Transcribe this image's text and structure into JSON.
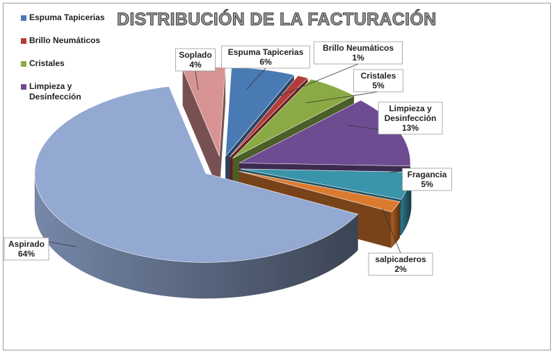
{
  "chart_data": {
    "type": "pie",
    "title": "DISTRIBUCIÓN DE LA FACTURACIÓN",
    "legend_position": "top-left",
    "legend": [
      {
        "label": "Espuma Tapicerias",
        "color": "#4a7ab4"
      },
      {
        "label": "Brillo Neumáticos",
        "color": "#b43c3a"
      },
      {
        "label": "Cristales",
        "color": "#8aaa46"
      },
      {
        "label": "Limpieza y Desinfección",
        "color": "#6e4c92"
      }
    ],
    "slices": [
      {
        "label": "Espuma Tapicerias",
        "value": 6,
        "percent_label": "6%",
        "color": "#4a7ab4"
      },
      {
        "label": "Brillo Neumáticos",
        "value": 1,
        "percent_label": "1%",
        "color": "#b43c3a"
      },
      {
        "label": "Cristales",
        "value": 5,
        "percent_label": "5%",
        "color": "#8aaa46"
      },
      {
        "label": "Limpieza y Desinfección",
        "value": 13,
        "percent_label": "13%",
        "color": "#6e4c92"
      },
      {
        "label": "Fragancia",
        "value": 5,
        "percent_label": "5%",
        "color": "#3a94aa"
      },
      {
        "label": "salpicaderos",
        "value": 2,
        "percent_label": "2%",
        "color": "#dc7a30"
      },
      {
        "label": "Aspirado",
        "value": 64,
        "percent_label": "64%",
        "color": "#93a9d2"
      },
      {
        "label": "Soplado",
        "value": 4,
        "percent_label": "4%",
        "color": "#d89494"
      }
    ]
  }
}
